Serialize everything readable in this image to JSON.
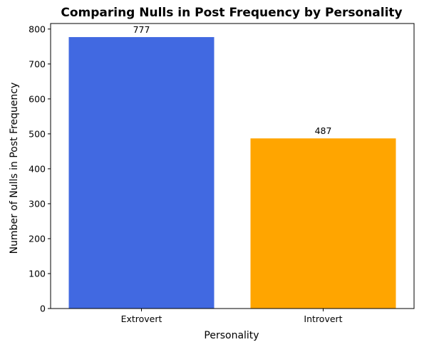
{
  "chart_data": {
    "type": "bar",
    "title": "Comparing Nulls in Post Frequency by Personality",
    "xlabel": "Personality",
    "ylabel": "Number of Nulls in Post Frequency",
    "categories": [
      "Extrovert",
      "Introvert"
    ],
    "values": [
      777,
      487
    ],
    "value_labels": [
      "777",
      "487"
    ],
    "colors": [
      "#4169E1",
      "#FFA500"
    ],
    "ylim": [
      0,
      815.85
    ],
    "yticks": [
      0,
      100,
      200,
      300,
      400,
      500,
      600,
      700,
      800
    ],
    "ytick_labels": [
      "0",
      "100",
      "200",
      "300",
      "400",
      "500",
      "600",
      "700",
      "800"
    ],
    "grid": false,
    "legend": false
  }
}
